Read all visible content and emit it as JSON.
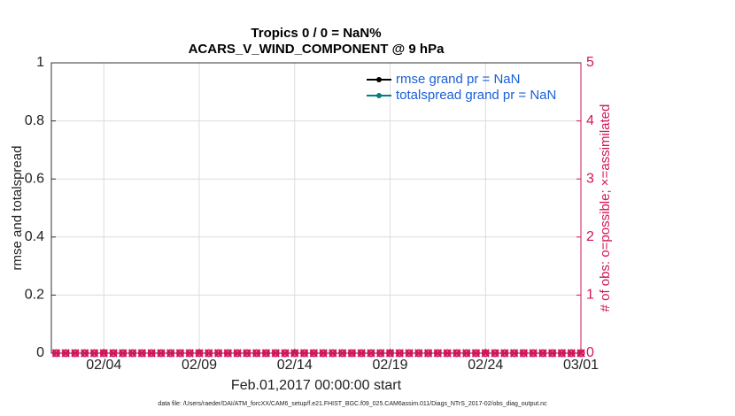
{
  "chart_data": {
    "type": "line",
    "title": "Tropics 0 / 0 = NaN%",
    "subtitle": "ACARS_V_WIND_COMPONENT @ 9 hPa",
    "xlabel": "Feb.01,2017 00:00:00 start",
    "ylabel": "rmse and totalspread",
    "y2label": "# of obs: o=possible; ×=assimilated",
    "footnote": "data file: /Users/raeder/DAI/ATM_forcXX/CAM6_setup/f.e21.FHIST_BGC.f09_025.CAM6assim.011/Diags_NTrS_2017-02/obs_diag_output.nc",
    "x": [
      1.5,
      2,
      2.5,
      3,
      3.5,
      4,
      4.5,
      5,
      5.5,
      6,
      6.5,
      7,
      7.5,
      8,
      8.5,
      9,
      9.5,
      10,
      10.5,
      11,
      11.5,
      12,
      12.5,
      13,
      13.5,
      14,
      14.5,
      15,
      15.5,
      16,
      16.5,
      17,
      17.5,
      18,
      18.5,
      19,
      19.5,
      20,
      20.5,
      21,
      21.5,
      22,
      22.5,
      23,
      23.5,
      24,
      24.5,
      25,
      25.5,
      26,
      26.5,
      27,
      27.5,
      28,
      28.5,
      29
    ],
    "xlim": [
      1.25,
      29
    ],
    "xticks": [
      {
        "value": 4,
        "label": "02/04"
      },
      {
        "value": 9,
        "label": "02/09"
      },
      {
        "value": 14,
        "label": "02/14"
      },
      {
        "value": 19,
        "label": "02/19"
      },
      {
        "value": 24,
        "label": "02/24"
      },
      {
        "value": 29,
        "label": "03/01"
      }
    ],
    "ylim": [
      0,
      1
    ],
    "yticks": [
      0,
      0.2,
      0.4,
      0.6,
      0.8,
      1
    ],
    "y2lim": [
      0,
      5
    ],
    "y2ticks": [
      0,
      1,
      2,
      3,
      4,
      5
    ],
    "y2color": "#d4145a",
    "grid": true,
    "legend": "upper right",
    "legend_text_color": "#1a5fd8",
    "series": [
      {
        "name": "rmse grand pr = NaN",
        "color": "#000000",
        "values": [
          null,
          null,
          null,
          null,
          null,
          null,
          null,
          null,
          null,
          null,
          null,
          null,
          null,
          null,
          null,
          null,
          null,
          null,
          null,
          null,
          null,
          null,
          null,
          null,
          null,
          null,
          null,
          null,
          null,
          null,
          null,
          null,
          null,
          null,
          null,
          null,
          null,
          null,
          null,
          null,
          null,
          null,
          null,
          null,
          null,
          null,
          null,
          null,
          null,
          null,
          null,
          null,
          null,
          null,
          null,
          null
        ]
      },
      {
        "name": "totalspread grand pr = NaN",
        "color": "#008080",
        "values": [
          null,
          null,
          null,
          null,
          null,
          null,
          null,
          null,
          null,
          null,
          null,
          null,
          null,
          null,
          null,
          null,
          null,
          null,
          null,
          null,
          null,
          null,
          null,
          null,
          null,
          null,
          null,
          null,
          null,
          null,
          null,
          null,
          null,
          null,
          null,
          null,
          null,
          null,
          null,
          null,
          null,
          null,
          null,
          null,
          null,
          null,
          null,
          null,
          null,
          null,
          null,
          null,
          null,
          null,
          null,
          null
        ]
      },
      {
        "color": "#d4145a",
        "axis": "y2",
        "marker": "o",
        "values": [
          0,
          0,
          0,
          0,
          0,
          0,
          0,
          0,
          0,
          0,
          0,
          0,
          0,
          0,
          0,
          0,
          0,
          0,
          0,
          0,
          0,
          0,
          0,
          0,
          0,
          0,
          0,
          0,
          0,
          0,
          0,
          0,
          0,
          0,
          0,
          0,
          0,
          0,
          0,
          0,
          0,
          0,
          0,
          0,
          0,
          0,
          0,
          0,
          0,
          0,
          0,
          0,
          0,
          0,
          0,
          0
        ]
      },
      {
        "color": "#d4145a",
        "axis": "y2",
        "marker": "x",
        "values": [
          0,
          0,
          0,
          0,
          0,
          0,
          0,
          0,
          0,
          0,
          0,
          0,
          0,
          0,
          0,
          0,
          0,
          0,
          0,
          0,
          0,
          0,
          0,
          0,
          0,
          0,
          0,
          0,
          0,
          0,
          0,
          0,
          0,
          0,
          0,
          0,
          0,
          0,
          0,
          0,
          0,
          0,
          0,
          0,
          0,
          0,
          0,
          0,
          0,
          0,
          0,
          0,
          0,
          0,
          0,
          0
        ]
      }
    ]
  }
}
